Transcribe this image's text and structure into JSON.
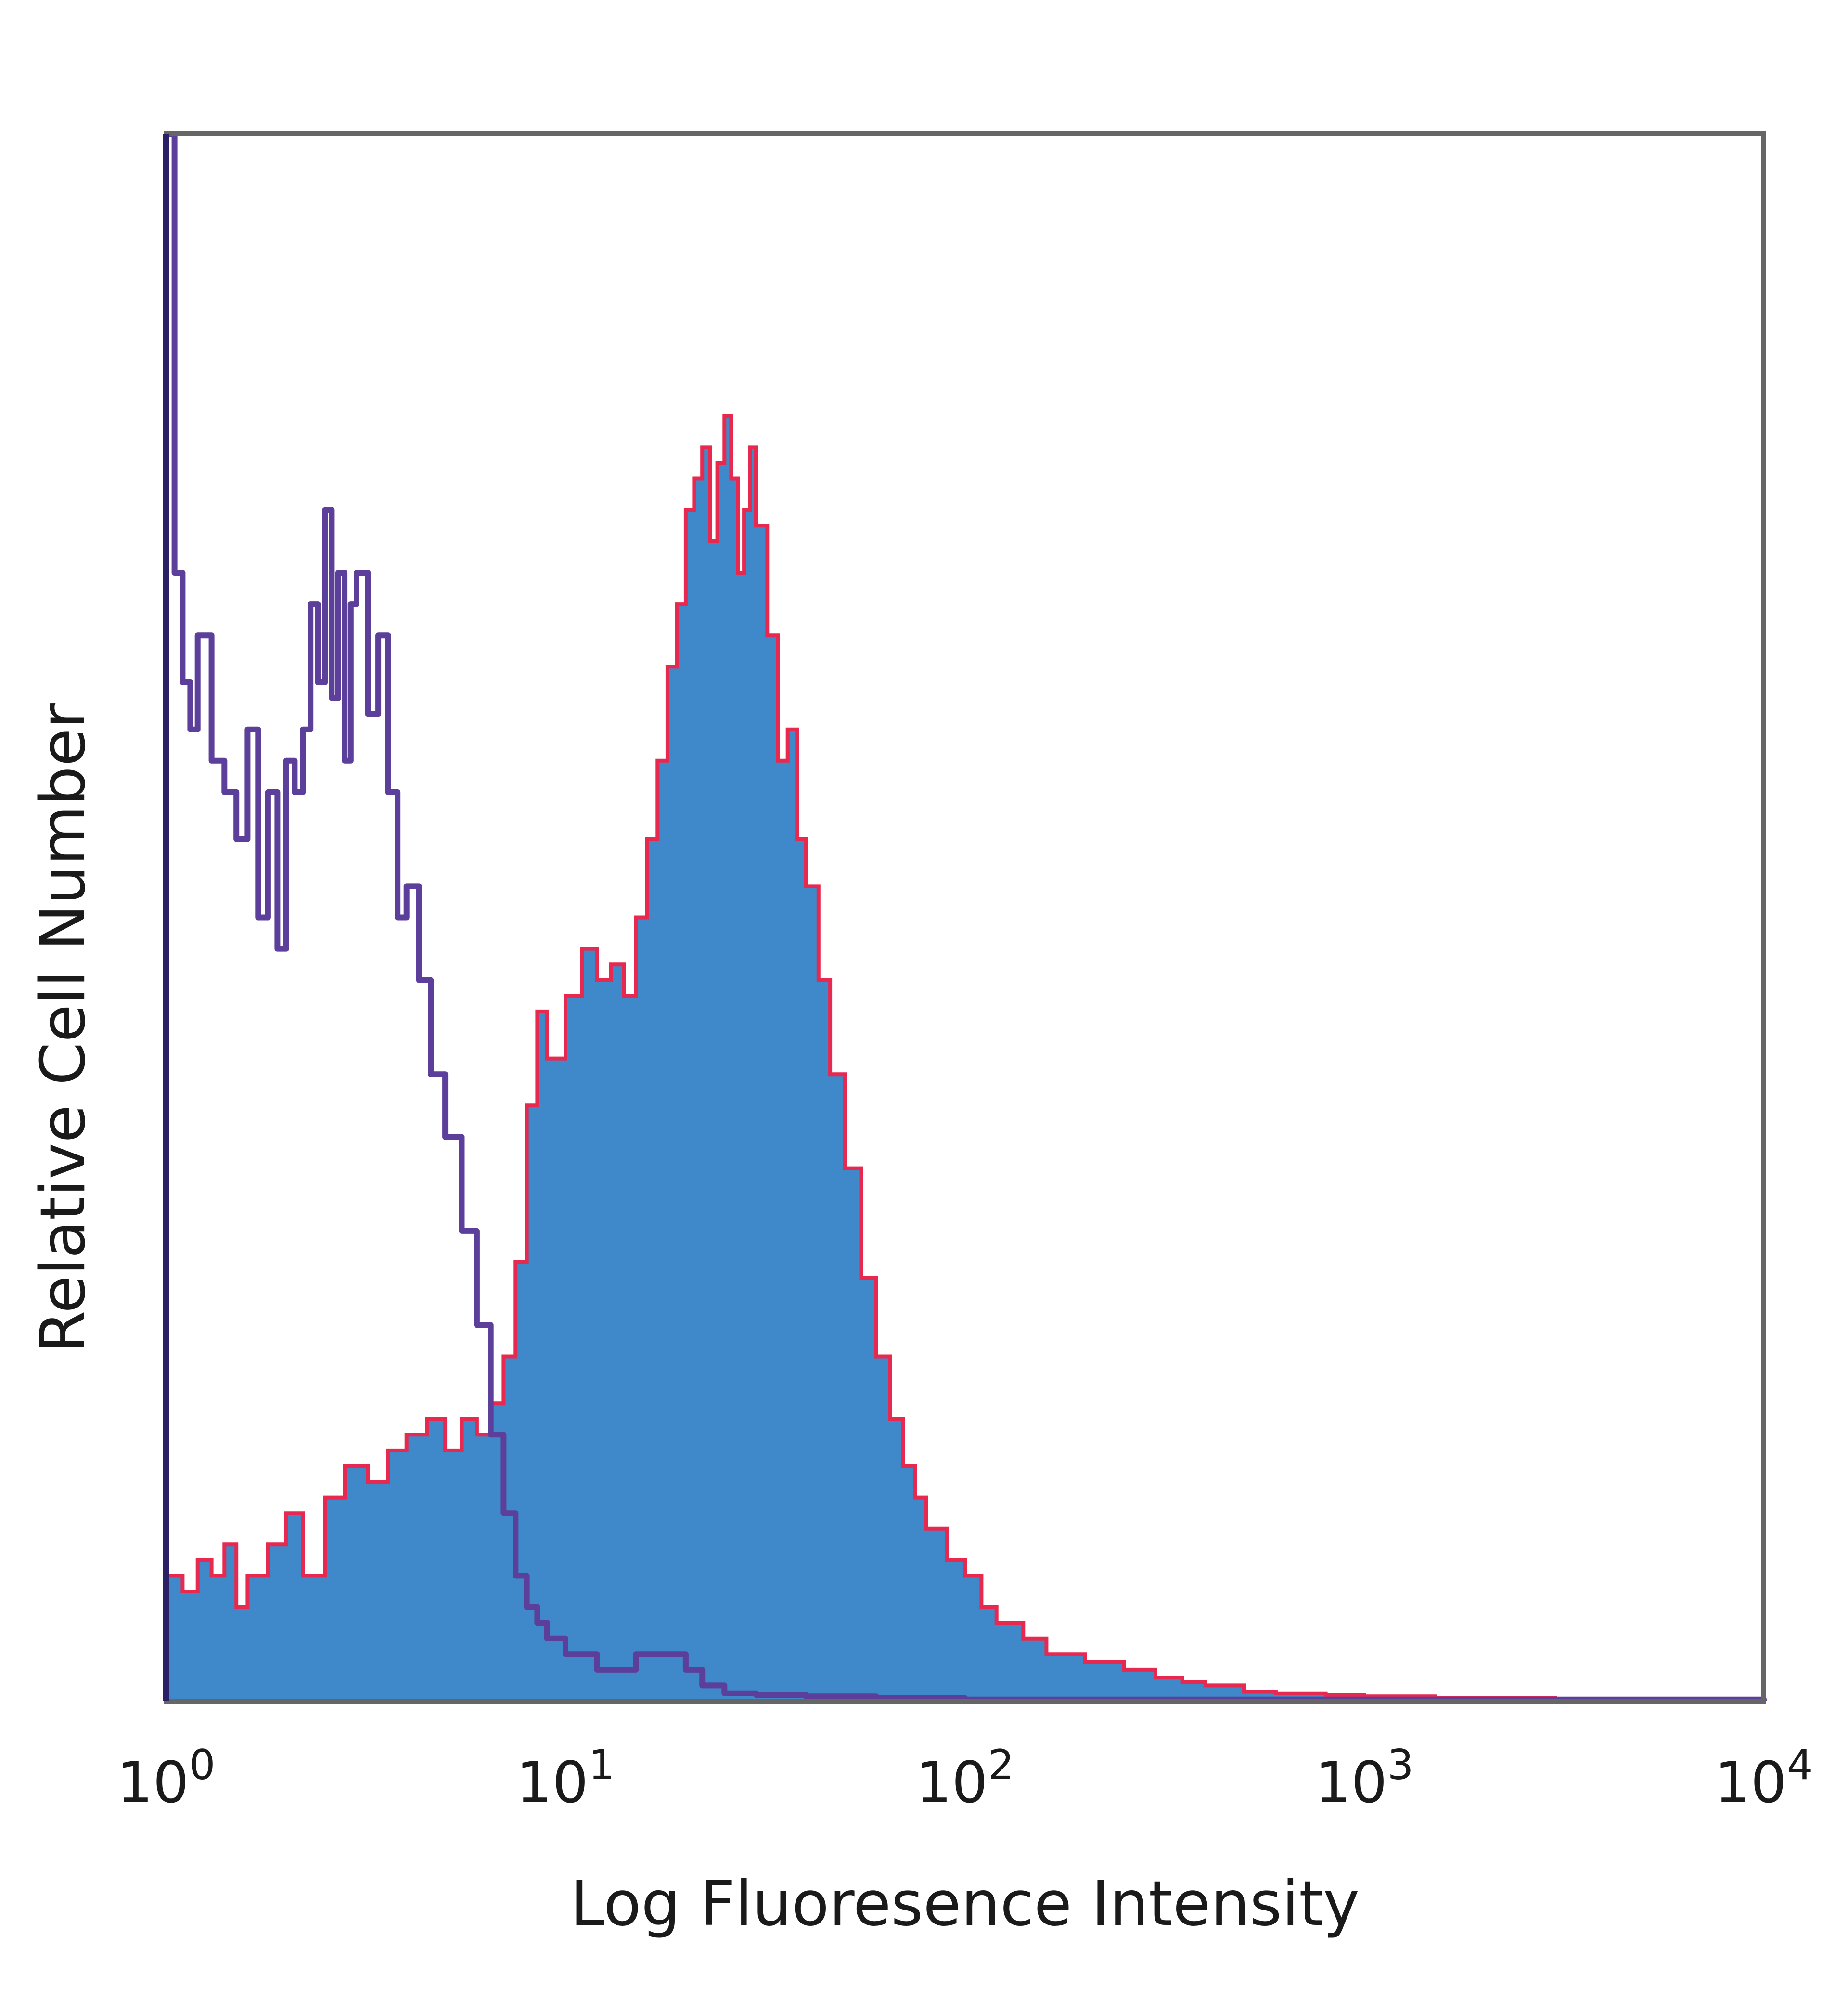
{
  "chart_data": {
    "type": "area",
    "xlabel": "Log Fluoresence Intensity",
    "ylabel": "Relative Cell Number",
    "xscale": "log",
    "xlim": [
      1,
      10000
    ],
    "ylim": [
      0,
      100
    ],
    "grid": false,
    "x_ticks": [
      {
        "base": "10",
        "exp": "0"
      },
      {
        "base": "10",
        "exp": "1"
      },
      {
        "base": "10",
        "exp": "2"
      },
      {
        "base": "10",
        "exp": "3"
      },
      {
        "base": "10",
        "exp": "4"
      }
    ],
    "series": [
      {
        "style": "filled",
        "fill_color": "#3f88c9",
        "edge_color": "#e8294f",
        "x": [
          1,
          1.1,
          1.2,
          1.3,
          1.4,
          1.5,
          1.6,
          1.8,
          2,
          2.2,
          2.5,
          2.8,
          3.2,
          3.6,
          4,
          4.5,
          5,
          5.5,
          6,
          6.5,
          7,
          7.5,
          8,
          8.5,
          9,
          10,
          11,
          12,
          13,
          14,
          15,
          16,
          17,
          18,
          19,
          20,
          21,
          22,
          23,
          24,
          25,
          26,
          27,
          28,
          29,
          30,
          32,
          34,
          36,
          38,
          40,
          43,
          46,
          50,
          55,
          60,
          65,
          70,
          75,
          80,
          90,
          100,
          110,
          120,
          140,
          160,
          200,
          250,
          300,
          350,
          400,
          500,
          600,
          800,
          1000,
          1500,
          2000,
          3000,
          5000,
          7000,
          10000
        ],
        "y": [
          8,
          7,
          9,
          8,
          10,
          6,
          8,
          10,
          12,
          8,
          13,
          15,
          14,
          16,
          17,
          18,
          16,
          18,
          17,
          19,
          22,
          28,
          38,
          44,
          41,
          45,
          48,
          46,
          47,
          45,
          50,
          55,
          60,
          66,
          70,
          76,
          78,
          80,
          74,
          79,
          82,
          78,
          72,
          76,
          80,
          75,
          68,
          60,
          62,
          55,
          52,
          46,
          40,
          34,
          27,
          22,
          18,
          15,
          13,
          11,
          9,
          8,
          6,
          5,
          4,
          3,
          2.5,
          2,
          1.5,
          1.2,
          1,
          0.6,
          0.5,
          0.4,
          0.3,
          0.2,
          0.2,
          0.1,
          0.1,
          0.1,
          0
        ]
      },
      {
        "style": "outline",
        "line_color": "#5b3f9a",
        "x": [
          1,
          1.05,
          1.1,
          1.15,
          1.2,
          1.3,
          1.4,
          1.5,
          1.6,
          1.7,
          1.8,
          1.9,
          2,
          2.1,
          2.2,
          2.3,
          2.4,
          2.5,
          2.6,
          2.7,
          2.8,
          2.9,
          3,
          3.2,
          3.4,
          3.6,
          3.8,
          4,
          4.3,
          4.6,
          5,
          5.5,
          6,
          6.5,
          7,
          7.5,
          8,
          8.5,
          9,
          10,
          11,
          12,
          13,
          15,
          17,
          20,
          22,
          25,
          30,
          40,
          60,
          100,
          10000
        ],
        "y": [
          100,
          72,
          65,
          62,
          68,
          60,
          58,
          55,
          62,
          50,
          58,
          48,
          60,
          58,
          62,
          70,
          65,
          76,
          64,
          72,
          60,
          70,
          72,
          63,
          68,
          58,
          50,
          52,
          46,
          40,
          36,
          30,
          24,
          17,
          12,
          8,
          6,
          5,
          4,
          3,
          3,
          2,
          2,
          3,
          3,
          2,
          1,
          0.5,
          0.4,
          0.3,
          0.2,
          0.1,
          0
        ]
      }
    ]
  }
}
